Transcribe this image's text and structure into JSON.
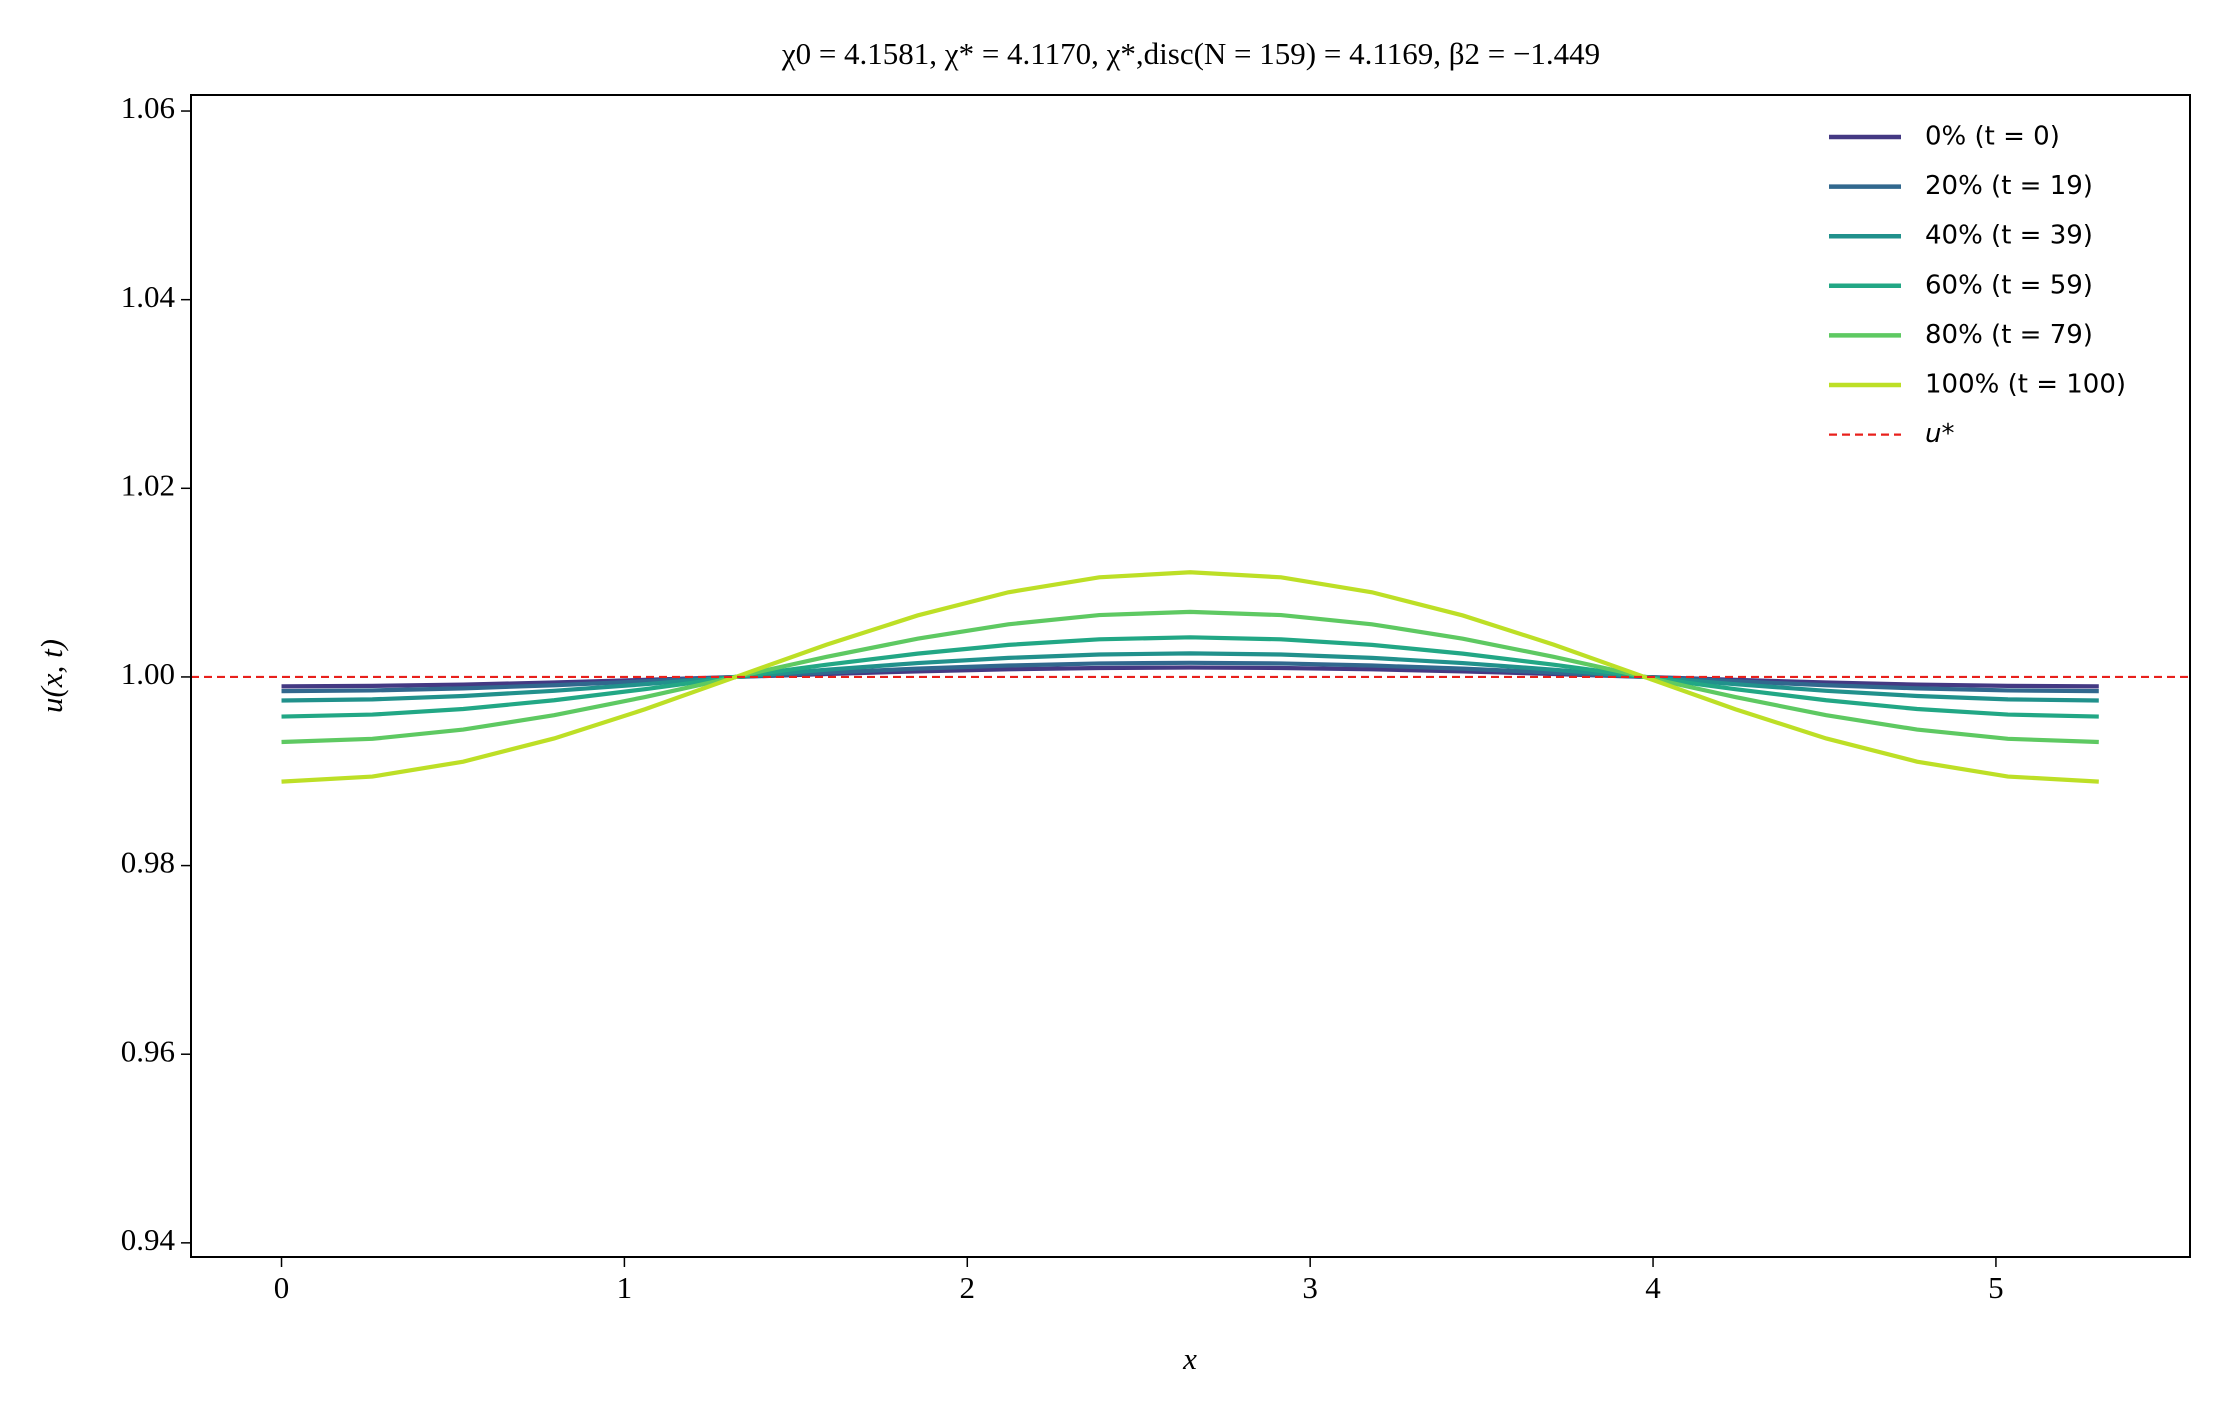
{
  "chart_data": {
    "type": "line",
    "title": "χ0 = 4.1581,  χ* = 4.1170,  χ*,disc(N = 159) = 4.1169,  β2 = −1.449",
    "xlabel": "x",
    "ylabel": "u(x, t)",
    "x": [
      0,
      0.265,
      0.53,
      0.795,
      1.06,
      1.325,
      1.59,
      1.855,
      2.12,
      2.385,
      2.65,
      2.915,
      3.18,
      3.445,
      3.71,
      3.975,
      4.24,
      4.505,
      4.77,
      5.035,
      5.3
    ],
    "series": [
      {
        "name": "0% (t = 0)",
        "color": "#443983",
        "values": [
          0.999,
          0.99905,
          0.99919,
          0.99941,
          0.99969,
          1,
          1.00031,
          1.00059,
          1.00081,
          1.00095,
          1.001,
          1.00095,
          1.00081,
          1.00059,
          1.00031,
          1,
          0.99969,
          0.99941,
          0.99919,
          0.99905,
          0.999
        ]
      },
      {
        "name": "20% (t = 19)",
        "color": "#31688e",
        "values": [
          0.9985,
          0.99857,
          0.99879,
          0.99912,
          0.99954,
          1,
          1.00046,
          1.00088,
          1.00121,
          1.00143,
          1.0015,
          1.00143,
          1.00121,
          1.00088,
          1.00046,
          1,
          0.99954,
          0.99912,
          0.99879,
          0.99857,
          0.9985
        ]
      },
      {
        "name": "40% (t = 39)",
        "color": "#21918c",
        "values": [
          0.9975,
          0.99762,
          0.99798,
          0.99853,
          0.99923,
          1,
          1.00077,
          1.00147,
          1.00202,
          1.00238,
          1.0025,
          1.00238,
          1.00202,
          1.00147,
          1.00077,
          1,
          0.99923,
          0.99853,
          0.99798,
          0.99762,
          0.9975
        ]
      },
      {
        "name": "60% (t = 59)",
        "color": "#22a785",
        "values": [
          0.9958,
          0.99601,
          0.9966,
          0.99753,
          0.9987,
          1,
          1.0013,
          1.00247,
          1.0034,
          1.00399,
          1.0042,
          1.00399,
          1.0034,
          1.00247,
          1.0013,
          1,
          0.9987,
          0.99753,
          0.9966,
          0.99601,
          0.9958
        ]
      },
      {
        "name": "80% (t = 79)",
        "color": "#5ec962",
        "values": [
          0.9931,
          0.99344,
          0.99442,
          0.99594,
          0.99787,
          1,
          1.00213,
          1.00406,
          1.00558,
          1.00656,
          1.0069,
          1.00656,
          1.00558,
          1.00406,
          1.00213,
          1,
          0.99787,
          0.99594,
          0.99442,
          0.99344,
          0.9931
        ]
      },
      {
        "name": "100% (t = 100)",
        "color": "#bddf26",
        "values": [
          0.9889,
          0.98944,
          0.99102,
          0.99348,
          0.99657,
          1,
          1.00343,
          1.00652,
          1.00898,
          1.01056,
          1.0111,
          1.01056,
          1.00898,
          1.00652,
          1.00343,
          1,
          0.99657,
          0.99348,
          0.99102,
          0.98944,
          0.9889
        ]
      }
    ],
    "reference_line": {
      "name": "u*",
      "value": 1,
      "color": "#e8201c"
    },
    "xlim": [
      -0.264,
      5.566
    ],
    "xticks": [
      0,
      1,
      2,
      3,
      4,
      5
    ],
    "ylim": [
      0.9385,
      1.0617
    ],
    "yticks": [
      0.94,
      0.96,
      0.98,
      {
        "value": 1,
        "label": "1.00"
      },
      1.02,
      1.04,
      1.06
    ],
    "legend": "upper right"
  }
}
